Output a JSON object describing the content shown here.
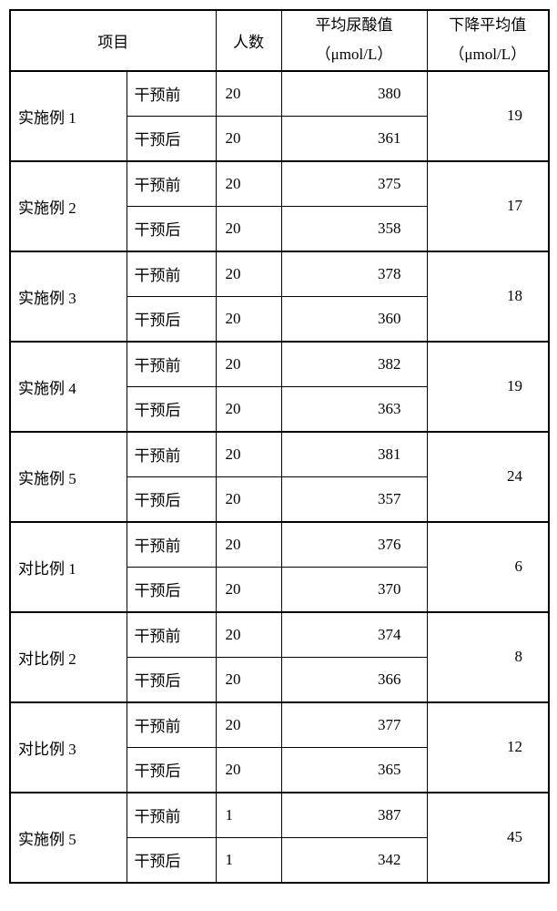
{
  "header": {
    "project": "项目",
    "count": "人数",
    "avg_label": "平均尿酸值",
    "avg_unit": "（μmol/L）",
    "drop_label": "下降平均值",
    "drop_unit": "（μmol/L）"
  },
  "phase_before": "干预前",
  "phase_after": "干预后",
  "rows": [
    {
      "name": "实施例 1",
      "before_count": "20",
      "before_avg": "380",
      "after_count": "20",
      "after_avg": "361",
      "drop": "19"
    },
    {
      "name": "实施例 2",
      "before_count": "20",
      "before_avg": "375",
      "after_count": "20",
      "after_avg": "358",
      "drop": "17"
    },
    {
      "name": "实施例 3",
      "before_count": "20",
      "before_avg": "378",
      "after_count": "20",
      "after_avg": "360",
      "drop": "18"
    },
    {
      "name": "实施例 4",
      "before_count": "20",
      "before_avg": "382",
      "after_count": "20",
      "after_avg": "363",
      "drop": "19"
    },
    {
      "name": "实施例 5",
      "before_count": "20",
      "before_avg": "381",
      "after_count": "20",
      "after_avg": "357",
      "drop": "24"
    },
    {
      "name": "对比例 1",
      "before_count": "20",
      "before_avg": "376",
      "after_count": "20",
      "after_avg": "370",
      "drop": "6"
    },
    {
      "name": "对比例 2",
      "before_count": "20",
      "before_avg": "374",
      "after_count": "20",
      "after_avg": "366",
      "drop": "8"
    },
    {
      "name": "对比例 3",
      "before_count": "20",
      "before_avg": "377",
      "after_count": "20",
      "after_avg": "365",
      "drop": "12"
    },
    {
      "name": "实施例 5",
      "before_count": "1",
      "before_avg": "387",
      "after_count": "1",
      "after_avg": "342",
      "drop": "45"
    }
  ]
}
